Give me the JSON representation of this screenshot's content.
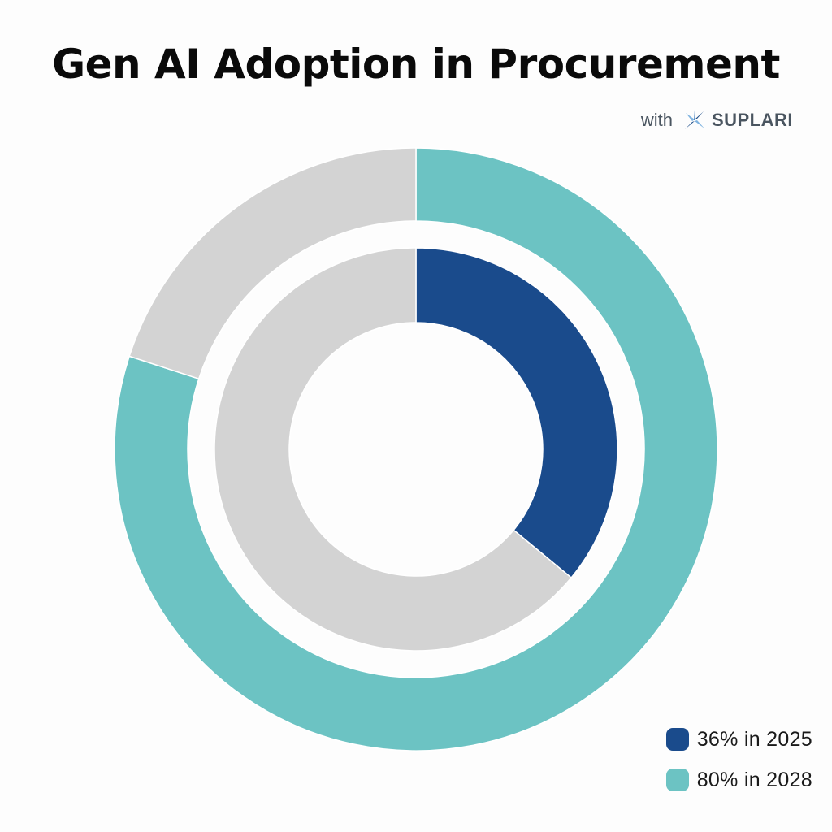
{
  "title": "Gen AI Adoption in Procurement",
  "subtitle": {
    "with_text": "with",
    "brand": "SUPLARI"
  },
  "colors": {
    "remainder": "#d3d3d3",
    "brand_mark_light": "#7fb3e0",
    "brand_mark_dark": "#1f4f8a"
  },
  "chart_data": {
    "type": "donut",
    "title": "Gen AI Adoption in Procurement",
    "series": [
      {
        "name": "36% in 2025",
        "value": 36,
        "remainder": 64,
        "color": "#1a4b8c",
        "ring": "inner"
      },
      {
        "name": "80% in 2028",
        "value": 80,
        "remainder": 20,
        "color": "#6cc3c3",
        "ring": "outer"
      }
    ],
    "start_angle_deg": 0,
    "direction": "clockwise",
    "legend_position": "bottom-right"
  },
  "legend": [
    {
      "label": "36% in 2025",
      "color": "#1a4b8c"
    },
    {
      "label": "80% in 2028",
      "color": "#6cc3c3"
    }
  ]
}
